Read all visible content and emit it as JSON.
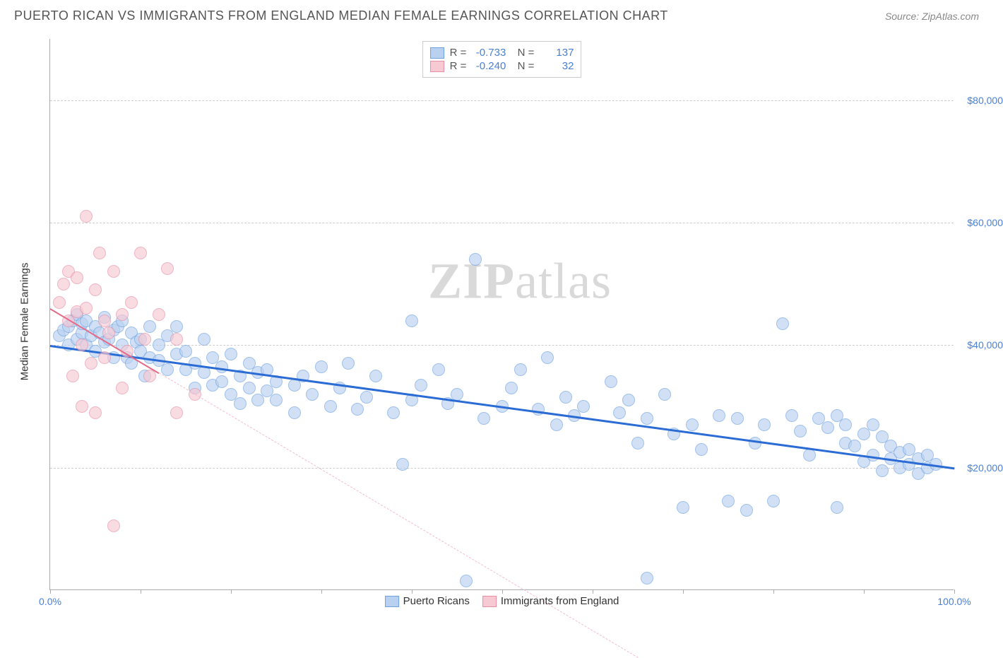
{
  "title": "PUERTO RICAN VS IMMIGRANTS FROM ENGLAND MEDIAN FEMALE EARNINGS CORRELATION CHART",
  "source": "Source: ZipAtlas.com",
  "watermark_bold": "ZIP",
  "watermark_light": "atlas",
  "ylabel": "Median Female Earnings",
  "chart": {
    "type": "scatter",
    "background_color": "#ffffff",
    "grid_color": "#cccccc",
    "axis_color": "#aaaaaa",
    "xlim": [
      0,
      100
    ],
    "ylim": [
      0,
      90000
    ],
    "yticks": [
      20000,
      40000,
      60000,
      80000
    ],
    "ytick_labels": [
      "$20,000",
      "$40,000",
      "$60,000",
      "$80,000"
    ],
    "xtick_positions": [
      0,
      10,
      20,
      30,
      40,
      50,
      60,
      70,
      80,
      90,
      100
    ],
    "xtick_labels_shown": {
      "0": "0.0%",
      "100": "100.0%"
    },
    "point_radius": 9,
    "series": [
      {
        "name": "Puerto Ricans",
        "fill": "#b9d1f0",
        "stroke": "#6ea0e0",
        "fill_opacity": 0.65,
        "R": "-0.733",
        "N": "137",
        "trend": {
          "x1": 0,
          "y1": 40000,
          "x2": 100,
          "y2": 20000,
          "color": "#2b6cd4",
          "width": 3
        },
        "points": [
          [
            1,
            41500
          ],
          [
            1.5,
            42500
          ],
          [
            2,
            40000
          ],
          [
            2,
            43000
          ],
          [
            2.5,
            44000
          ],
          [
            3,
            41000
          ],
          [
            3,
            45000
          ],
          [
            3.5,
            42000
          ],
          [
            3.5,
            43500
          ],
          [
            4,
            44000
          ],
          [
            4,
            40000
          ],
          [
            4.5,
            41500
          ],
          [
            5,
            43000
          ],
          [
            5,
            39000
          ],
          [
            5.5,
            42000
          ],
          [
            6,
            44500
          ],
          [
            6,
            40500
          ],
          [
            6.5,
            41000
          ],
          [
            7,
            38000
          ],
          [
            7,
            42500
          ],
          [
            7.5,
            43000
          ],
          [
            8,
            40000
          ],
          [
            8,
            44000
          ],
          [
            8.5,
            38000
          ],
          [
            9,
            37000
          ],
          [
            9,
            42000
          ],
          [
            9.5,
            40500
          ],
          [
            10,
            39000
          ],
          [
            10,
            41000
          ],
          [
            10.5,
            35000
          ],
          [
            11,
            43000
          ],
          [
            11,
            38000
          ],
          [
            12,
            37500
          ],
          [
            12,
            40000
          ],
          [
            13,
            36000
          ],
          [
            13,
            41500
          ],
          [
            14,
            38500
          ],
          [
            14,
            43000
          ],
          [
            15,
            36000
          ],
          [
            15,
            39000
          ],
          [
            16,
            37000
          ],
          [
            16,
            33000
          ],
          [
            17,
            41000
          ],
          [
            17,
            35500
          ],
          [
            18,
            38000
          ],
          [
            18,
            33500
          ],
          [
            19,
            36500
          ],
          [
            19,
            34000
          ],
          [
            20,
            38500
          ],
          [
            20,
            32000
          ],
          [
            21,
            35000
          ],
          [
            21,
            30500
          ],
          [
            22,
            37000
          ],
          [
            22,
            33000
          ],
          [
            23,
            35500
          ],
          [
            23,
            31000
          ],
          [
            24,
            36000
          ],
          [
            24,
            32500
          ],
          [
            25,
            31000
          ],
          [
            25,
            34000
          ],
          [
            27,
            33500
          ],
          [
            27,
            29000
          ],
          [
            28,
            35000
          ],
          [
            29,
            32000
          ],
          [
            30,
            36500
          ],
          [
            31,
            30000
          ],
          [
            32,
            33000
          ],
          [
            33,
            37000
          ],
          [
            34,
            29500
          ],
          [
            35,
            31500
          ],
          [
            36,
            35000
          ],
          [
            38,
            29000
          ],
          [
            39,
            20500
          ],
          [
            40,
            31000
          ],
          [
            40,
            44000
          ],
          [
            41,
            33500
          ],
          [
            43,
            36000
          ],
          [
            44,
            30500
          ],
          [
            45,
            32000
          ],
          [
            46,
            1500
          ],
          [
            47,
            54000
          ],
          [
            48,
            28000
          ],
          [
            50,
            30000
          ],
          [
            51,
            33000
          ],
          [
            52,
            36000
          ],
          [
            54,
            29500
          ],
          [
            55,
            38000
          ],
          [
            56,
            27000
          ],
          [
            57,
            31500
          ],
          [
            58,
            28500
          ],
          [
            59,
            30000
          ],
          [
            62,
            34000
          ],
          [
            63,
            29000
          ],
          [
            64,
            31000
          ],
          [
            65,
            24000
          ],
          [
            66,
            28000
          ],
          [
            66,
            2000
          ],
          [
            68,
            32000
          ],
          [
            69,
            25500
          ],
          [
            70,
            13500
          ],
          [
            71,
            27000
          ],
          [
            72,
            23000
          ],
          [
            74,
            28500
          ],
          [
            75,
            14500
          ],
          [
            76,
            28000
          ],
          [
            77,
            13000
          ],
          [
            78,
            24000
          ],
          [
            79,
            27000
          ],
          [
            80,
            14500
          ],
          [
            81,
            43500
          ],
          [
            82,
            28500
          ],
          [
            83,
            26000
          ],
          [
            84,
            22000
          ],
          [
            85,
            28000
          ],
          [
            86,
            26500
          ],
          [
            87,
            13500
          ],
          [
            87,
            28500
          ],
          [
            88,
            24000
          ],
          [
            88,
            27000
          ],
          [
            89,
            23500
          ],
          [
            90,
            25500
          ],
          [
            90,
            21000
          ],
          [
            91,
            27000
          ],
          [
            91,
            22000
          ],
          [
            92,
            19500
          ],
          [
            92,
            25000
          ],
          [
            93,
            21500
          ],
          [
            93,
            23500
          ],
          [
            94,
            20000
          ],
          [
            94,
            22500
          ],
          [
            95,
            20500
          ],
          [
            95,
            23000
          ],
          [
            96,
            19000
          ],
          [
            96,
            21500
          ],
          [
            97,
            20000
          ],
          [
            97,
            22000
          ],
          [
            98,
            20500
          ]
        ]
      },
      {
        "name": "Immigrants from England",
        "fill": "#f7c9d3",
        "stroke": "#e68fa5",
        "fill_opacity": 0.65,
        "R": "-0.240",
        "N": "32",
        "trend": {
          "x1": 0,
          "y1": 46000,
          "x2": 12,
          "y2": 35500,
          "color": "#e56b8a",
          "width": 2
        },
        "trend_dash": {
          "x1": 12,
          "y1": 35500,
          "x2": 65,
          "y2": -11000,
          "color": "#f4bcc9"
        },
        "points": [
          [
            1,
            47000
          ],
          [
            1.5,
            50000
          ],
          [
            2,
            44000
          ],
          [
            2,
            52000
          ],
          [
            2.5,
            35000
          ],
          [
            3,
            45500
          ],
          [
            3,
            51000
          ],
          [
            3.5,
            40000
          ],
          [
            3.5,
            30000
          ],
          [
            4,
            61000
          ],
          [
            4,
            46000
          ],
          [
            4.5,
            37000
          ],
          [
            5,
            49000
          ],
          [
            5,
            29000
          ],
          [
            5.5,
            55000
          ],
          [
            6,
            44000
          ],
          [
            6,
            38000
          ],
          [
            6.5,
            42000
          ],
          [
            7,
            52000
          ],
          [
            7,
            10500
          ],
          [
            8,
            45000
          ],
          [
            8,
            33000
          ],
          [
            8.5,
            39000
          ],
          [
            9,
            47000
          ],
          [
            10,
            55000
          ],
          [
            10.5,
            41000
          ],
          [
            11,
            35000
          ],
          [
            12,
            45000
          ],
          [
            13,
            52500
          ],
          [
            14,
            29000
          ],
          [
            14,
            41000
          ],
          [
            16,
            32000
          ]
        ]
      }
    ],
    "legend_bottom": [
      {
        "label": "Puerto Ricans",
        "fill": "#b9d1f0",
        "stroke": "#6ea0e0"
      },
      {
        "label": "Immigrants from England",
        "fill": "#f7c9d3",
        "stroke": "#e68fa5"
      }
    ]
  }
}
